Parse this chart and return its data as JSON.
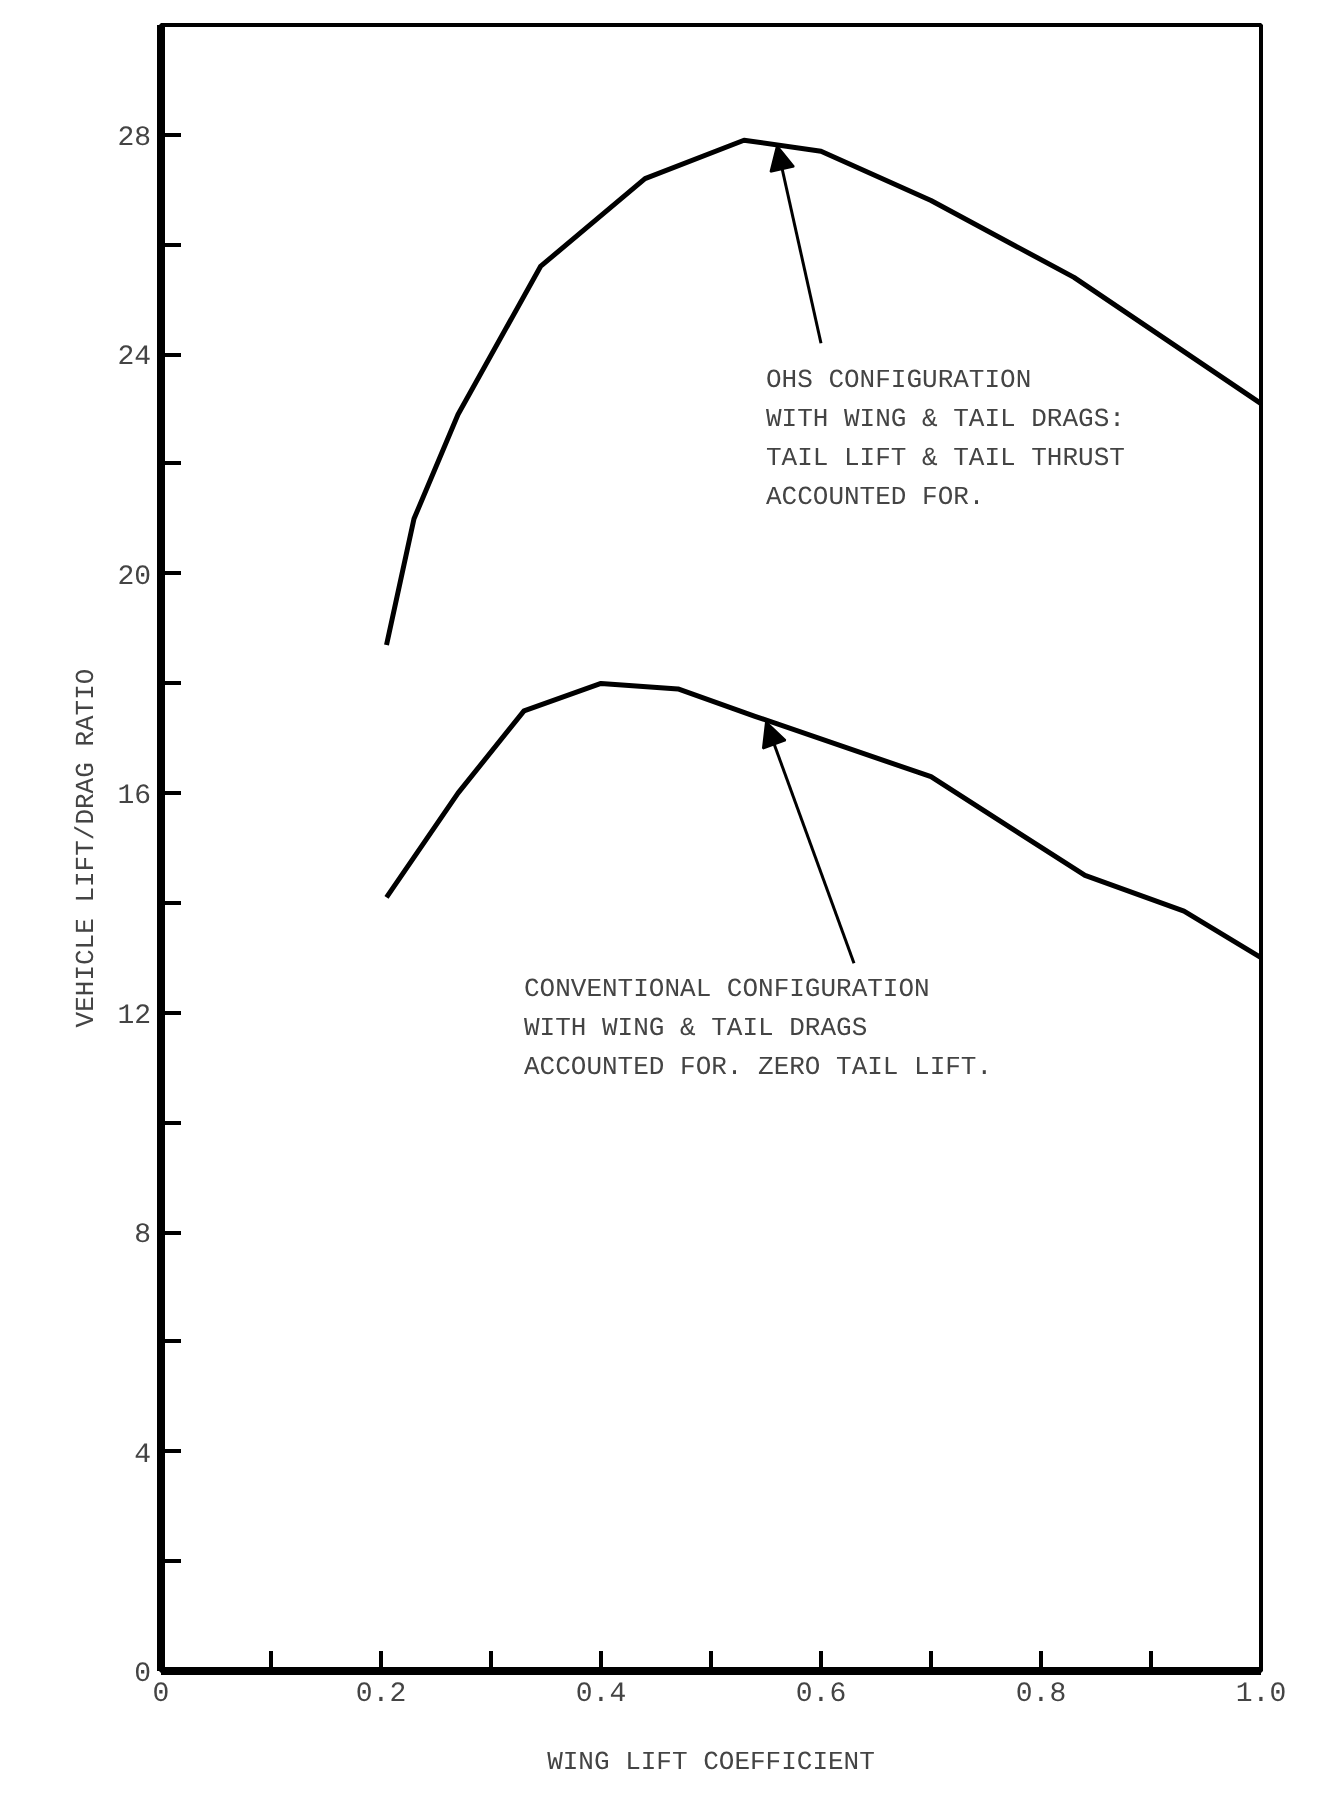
{
  "chart_data": {
    "type": "line",
    "xlabel": "WING LIFT COEFFICIENT",
    "ylabel": "VEHICLE LIFT/DRAG RATIO",
    "x": [
      0.205,
      0.23,
      0.27,
      0.345,
      0.44,
      0.53,
      0.6,
      0.7,
      0.83,
      1.0
    ],
    "series": [
      {
        "color": "#000000",
        "values": [
          18.7,
          21.0,
          22.9,
          25.6,
          27.2,
          27.9,
          27.7,
          26.8,
          25.4,
          23.1
        ]
      },
      {
        "color": "#000000",
        "x": [
          0.205,
          0.27,
          0.33,
          0.4,
          0.47,
          0.54,
          0.7,
          0.84,
          0.93,
          1.0
        ],
        "values": [
          14.1,
          16.0,
          17.5,
          18.0,
          17.9,
          17.4,
          16.3,
          14.5,
          13.85,
          13.0
        ]
      }
    ],
    "xlim": [
      0,
      1.0
    ],
    "ylim": [
      0,
      30
    ],
    "xticks": [
      0,
      {
        "value": 0.1,
        "label": null
      },
      0.2,
      {
        "value": 0.3,
        "label": null
      },
      0.4,
      {
        "value": 0.5,
        "label": null
      },
      0.6,
      {
        "value": 0.7,
        "label": null
      },
      0.8,
      {
        "value": 0.9,
        "label": null
      },
      {
        "value": 1.0,
        "label": "1.0"
      }
    ],
    "yticks": [
      0,
      {
        "value": 2,
        "label": null
      },
      4,
      {
        "value": 6,
        "label": null
      },
      8,
      {
        "value": 10,
        "label": null
      },
      12,
      {
        "value": 14,
        "label": null
      },
      16,
      {
        "value": 18,
        "label": null
      },
      20,
      {
        "value": 22,
        "label": null
      },
      24,
      {
        "value": 26,
        "label": null
      },
      28
    ],
    "annotations": [
      {
        "text": "OHS CONFIGURATION\nWITH WING & TAIL DRAGS:\nTAIL LIFT & TAIL THRUST\nACCOUNTED FOR.",
        "x": 0.56,
        "y": 27.8
      },
      {
        "text": "CONVENTIONAL CONFIGURATION\nWITH WING & TAIL DRAGS\nACCOUNTED FOR. ZERO TAIL LIFT.",
        "x": 0.55,
        "y": 17.3
      }
    ],
    "grid": false,
    "marker": "none",
    "line_style": "solid"
  }
}
